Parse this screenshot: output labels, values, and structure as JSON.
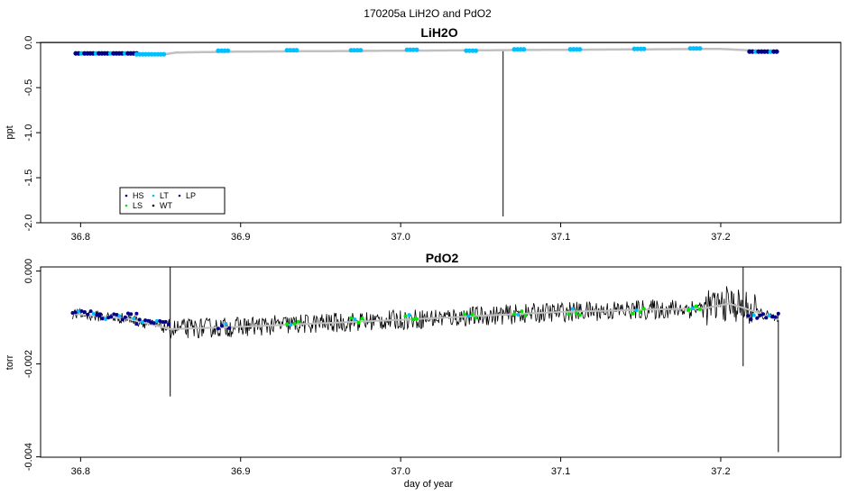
{
  "figure": {
    "title": "170205a   LiH2O and PdO2",
    "background": "#ffffff"
  },
  "colors": {
    "HS": "#00008b",
    "LS": "#00e600",
    "LT": "#00bfff",
    "WT": "#000000",
    "LP": "#191970",
    "trace": "#000000",
    "smooth": "#c0c0c0"
  },
  "chart_data": [
    {
      "type": "line",
      "title": "LiH2O",
      "xlabel": "",
      "ylabel": "ppt",
      "xlim": [
        36.775,
        37.275
      ],
      "ylim": [
        -2.0,
        0.0
      ],
      "x_ticks": [
        36.8,
        36.9,
        37.0,
        37.1,
        37.2
      ],
      "x_tick_labels": [
        "36.8",
        "36.9",
        "37.0",
        "37.1",
        "37.2"
      ],
      "y_ticks": [
        0.0,
        -0.5,
        -1.0,
        -1.5,
        -2.0
      ],
      "y_tick_labels": [
        "0.0",
        "-0.5",
        "-1.0",
        "-1.5",
        "-2.0"
      ],
      "reference_line_y": 0.0,
      "legend": {
        "position": "bottom-left",
        "entries": [
          {
            "label": "HS",
            "series": "HS"
          },
          {
            "label": "LS",
            "series": "LS"
          },
          {
            "label": "LT",
            "series": "LT"
          },
          {
            "label": "WT",
            "series": "WT"
          },
          {
            "label": "LP",
            "series": "LP"
          }
        ]
      },
      "trace": {
        "x_range": [
          36.797,
          37.235
        ],
        "baseline": [
          [
            36.797,
            -0.12
          ],
          [
            36.85,
            -0.135
          ],
          [
            36.86,
            -0.11
          ],
          [
            36.9,
            -0.1
          ],
          [
            37.0,
            -0.09
          ],
          [
            37.1,
            -0.08
          ],
          [
            37.2,
            -0.07
          ],
          [
            37.235,
            -0.1
          ]
        ],
        "spikes": [
          [
            37.064,
            -1.93
          ]
        ]
      },
      "calibrations": [
        {
          "x0": 36.797,
          "x1": 36.835,
          "y": -0.12,
          "series": "HS"
        },
        {
          "x0": 36.835,
          "x1": 36.852,
          "y": -0.13,
          "series": "LT"
        },
        {
          "x0": 36.886,
          "x1": 36.892,
          "y": -0.09,
          "series": "LT"
        },
        {
          "x0": 36.929,
          "x1": 36.935,
          "y": -0.085,
          "series": "LT"
        },
        {
          "x0": 36.969,
          "x1": 36.975,
          "y": -0.085,
          "series": "LT"
        },
        {
          "x0": 37.004,
          "x1": 37.01,
          "y": -0.08,
          "series": "LT"
        },
        {
          "x0": 37.041,
          "x1": 37.047,
          "y": -0.09,
          "series": "LT"
        },
        {
          "x0": 37.071,
          "x1": 37.077,
          "y": -0.075,
          "series": "LT"
        },
        {
          "x0": 37.106,
          "x1": 37.112,
          "y": -0.075,
          "series": "LT"
        },
        {
          "x0": 37.146,
          "x1": 37.152,
          "y": -0.07,
          "series": "LT"
        },
        {
          "x0": 37.181,
          "x1": 37.187,
          "y": -0.065,
          "series": "LT"
        },
        {
          "x0": 37.218,
          "x1": 37.235,
          "y": -0.1,
          "series": "HS"
        }
      ]
    },
    {
      "type": "line",
      "title": "PdO2",
      "xlabel": "day of year",
      "ylabel": "torr",
      "xlim": [
        36.775,
        37.275
      ],
      "ylim": [
        -0.004,
        0.0
      ],
      "x_ticks": [
        36.8,
        36.9,
        37.0,
        37.1,
        37.2
      ],
      "x_tick_labels": [
        "36.8",
        "36.9",
        "37.0",
        "37.1",
        "37.2"
      ],
      "y_ticks": [
        0.0,
        -0.002,
        -0.004
      ],
      "y_tick_labels": [
        "0.000",
        "-0.002",
        "-0.004"
      ],
      "trace": {
        "x_range": [
          36.795,
          37.236
        ],
        "baseline": [
          [
            36.795,
            -0.00092
          ],
          [
            36.83,
            -0.00103
          ],
          [
            36.856,
            -0.00125
          ],
          [
            36.9,
            -0.0012
          ],
          [
            37.0,
            -0.00105
          ],
          [
            37.1,
            -0.00088
          ],
          [
            37.19,
            -0.0008
          ],
          [
            37.205,
            -0.0007
          ],
          [
            37.215,
            -0.0008
          ],
          [
            37.236,
            -0.00105
          ]
        ],
        "spikes": [
          [
            36.856,
            -0.0027
          ],
          [
            36.856,
            0.0003
          ],
          [
            37.214,
            -0.00205
          ],
          [
            37.214,
            0.0004
          ],
          [
            37.236,
            -0.0039
          ]
        ]
      },
      "calibrations": [
        {
          "x0": 36.795,
          "x1": 36.812,
          "y": -0.00093,
          "series": "HS"
        },
        {
          "x0": 36.812,
          "x1": 36.835,
          "y": -0.00098,
          "series": "HS"
        },
        {
          "x0": 36.835,
          "x1": 36.855,
          "y": -0.00108,
          "series": "HS"
        },
        {
          "x0": 36.886,
          "x1": 36.893,
          "y": -0.00118,
          "series": "HS"
        },
        {
          "x0": 36.929,
          "x1": 36.936,
          "y": -0.00112,
          "series": "LS"
        },
        {
          "x0": 36.969,
          "x1": 36.976,
          "y": -0.00105,
          "series": "LS"
        },
        {
          "x0": 37.003,
          "x1": 37.01,
          "y": -0.001,
          "series": "LS"
        },
        {
          "x0": 37.04,
          "x1": 37.047,
          "y": -0.00095,
          "series": "LS"
        },
        {
          "x0": 37.071,
          "x1": 37.078,
          "y": -0.00092,
          "series": "LS"
        },
        {
          "x0": 37.105,
          "x1": 37.112,
          "y": -0.00088,
          "series": "LS"
        },
        {
          "x0": 37.145,
          "x1": 37.152,
          "y": -0.00085,
          "series": "LS"
        },
        {
          "x0": 37.18,
          "x1": 37.187,
          "y": -0.00082,
          "series": "LS"
        },
        {
          "x0": 37.217,
          "x1": 37.236,
          "y": -0.00098,
          "series": "HS"
        }
      ]
    }
  ]
}
